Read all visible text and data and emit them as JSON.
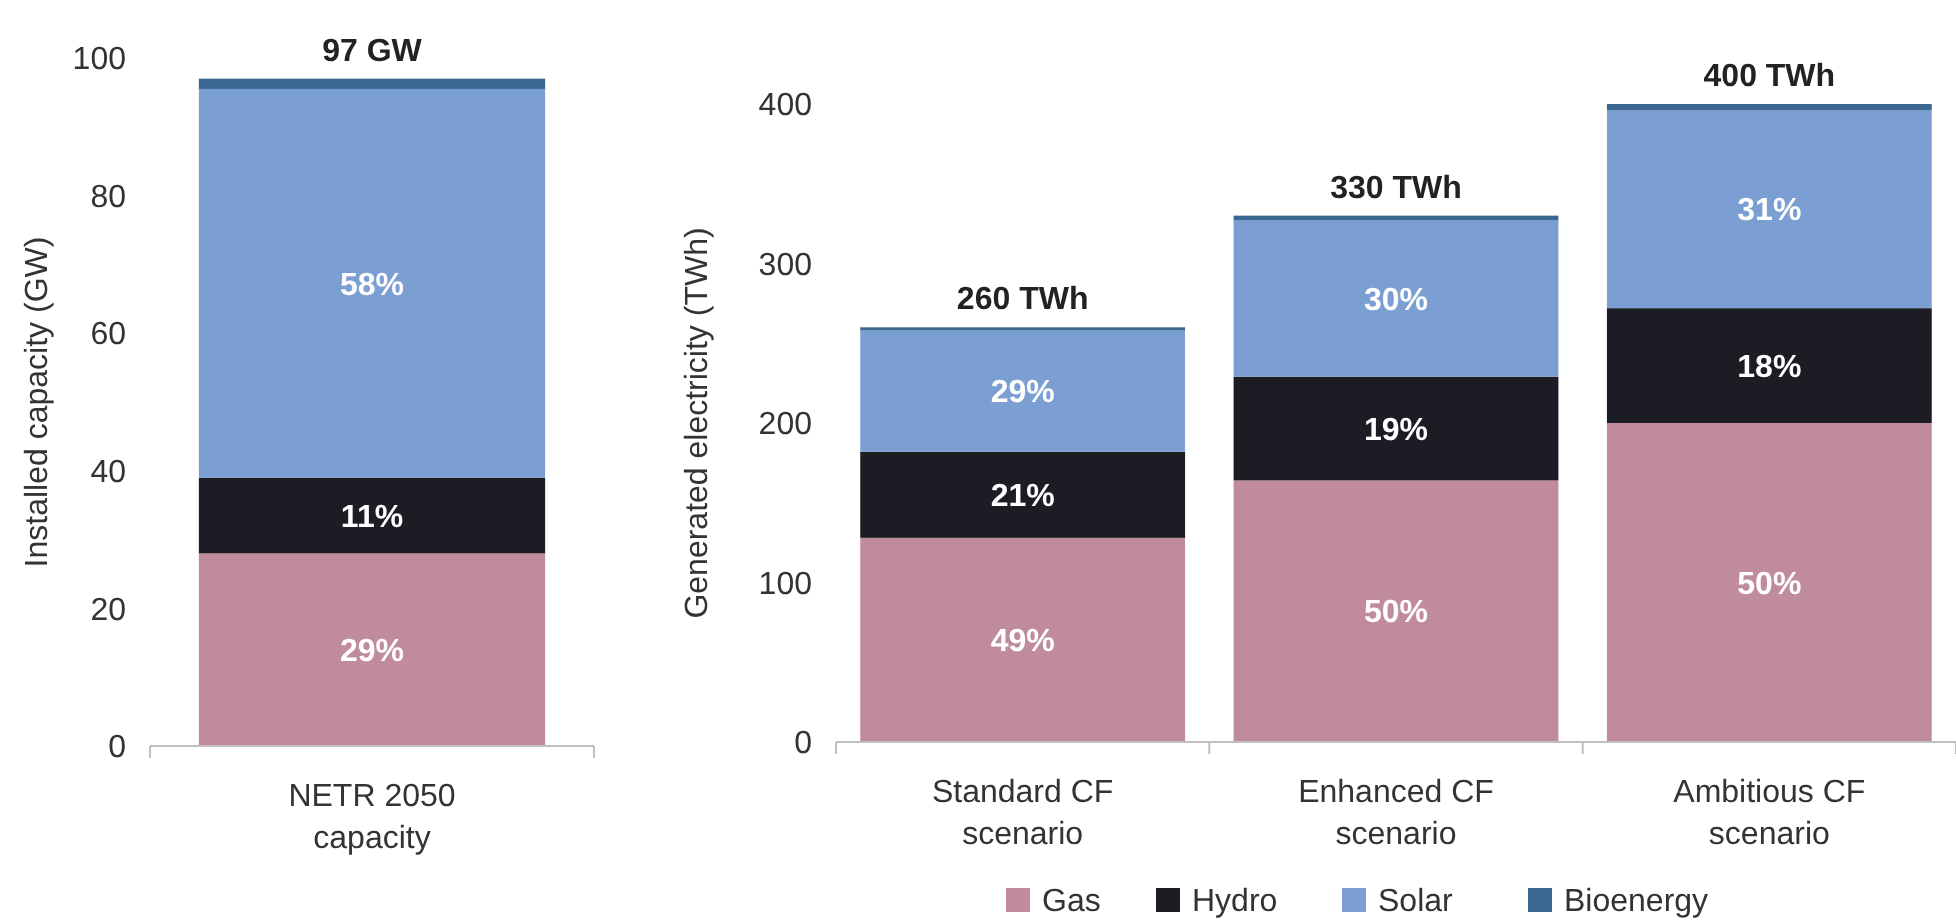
{
  "chart_data": [
    {
      "type": "bar",
      "stacked": true,
      "categories": [
        "NETR 2050 capacity"
      ],
      "ylabel": "Installed capacity (GW)",
      "ylim": [
        0,
        100
      ],
      "yticks": [
        0,
        20,
        40,
        60,
        80,
        100
      ],
      "totals": [
        "97 GW"
      ],
      "series": [
        {
          "color": "#c08b9c",
          "values": [
            28
          ]
        },
        {
          "color": "#1c1c24",
          "values": [
            11
          ]
        },
        {
          "color": "#7b9fd3",
          "values": [
            56.5
          ]
        },
        {
          "color": "#3a6890",
          "values": [
            1.5
          ]
        }
      ],
      "annotations": [
        "29%",
        "11%",
        "58%"
      ]
    },
    {
      "type": "bar",
      "stacked": true,
      "categories": [
        "Standard CF scenario",
        "Enhanced CF scenario",
        "Ambitious CF scenario"
      ],
      "ylabel": "Generated electricity (TWh)",
      "ylim": [
        0,
        400
      ],
      "yticks": [
        0,
        100,
        200,
        300,
        400
      ],
      "totals": [
        "260 TWh",
        "330 TWh",
        "400 TWh"
      ],
      "legend": "bottom",
      "series": [
        {
          "name": "Gas",
          "color": "#c08b9c",
          "values": [
            128,
            164,
            200
          ]
        },
        {
          "name": "Hydro",
          "color": "#1c1c24",
          "values": [
            54,
            65,
            72
          ]
        },
        {
          "name": "Solar",
          "color": "#7b9fd3",
          "values": [
            76,
            98,
            124
          ]
        },
        {
          "name": "Bioenergy",
          "color": "#3a6890",
          "values": [
            2,
            3,
            4
          ]
        }
      ],
      "annotations": [
        "49%",
        "21%",
        "29%",
        "50%",
        "19%",
        "30%",
        "50%",
        "18%",
        "31%"
      ]
    }
  ]
}
